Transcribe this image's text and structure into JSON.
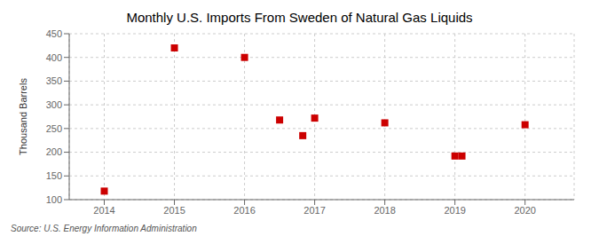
{
  "chart_data": {
    "type": "scatter",
    "title": "Monthly U.S. Imports From Sweden of Natural Gas Liquids",
    "ylabel": "Thousand Barrels",
    "annotations": [
      "Source: U.S. Energy Information Administration"
    ],
    "x": [
      2014.0,
      2015.0,
      2016.0,
      2016.5,
      2016.83,
      2017.0,
      2018.0,
      2019.0,
      2019.1,
      2020.0
    ],
    "values": [
      118,
      420,
      400,
      268,
      235,
      272,
      262,
      192,
      192,
      258
    ],
    "color": "#cc0000",
    "marker": "square",
    "xlim": [
      2013.5,
      2020.7
    ],
    "ylim": [
      100,
      450
    ],
    "xticks": [
      2014,
      2015,
      2016,
      2017,
      2018,
      2019,
      2020
    ],
    "yticks": [
      100,
      150,
      200,
      250,
      300,
      350,
      400,
      450
    ],
    "grid": true
  }
}
